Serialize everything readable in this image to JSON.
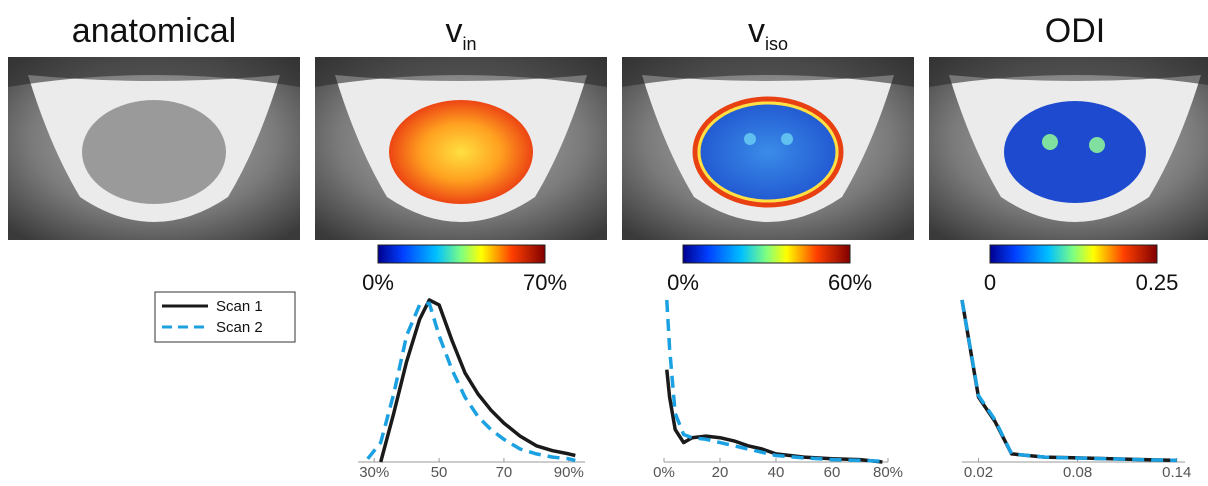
{
  "panels": [
    {
      "title": "anatomical"
    },
    {
      "title": "v",
      "subscript": "in"
    },
    {
      "title": "v",
      "subscript": "iso"
    },
    {
      "title": "ODI"
    }
  ],
  "colorbars": [
    {
      "min_label": "0%",
      "max_label": "70%"
    },
    {
      "min_label": "0%",
      "max_label": "60%"
    },
    {
      "min_label": "0",
      "max_label": "0.25"
    }
  ],
  "chart_data": [
    {
      "type": "line",
      "x": [
        28,
        32,
        36,
        40,
        44,
        47,
        50,
        54,
        58,
        62,
        66,
        70,
        75,
        80,
        85,
        90,
        92
      ],
      "series": [
        {
          "name": "Scan 1",
          "color": "#1a1a1a",
          "dashed": false,
          "values": [
            null,
            0,
            0.3,
            0.62,
            0.88,
            1.0,
            0.97,
            0.75,
            0.55,
            0.42,
            0.32,
            0.24,
            0.16,
            0.1,
            0.07,
            0.05,
            0.04
          ]
        },
        {
          "name": "Scan 2",
          "color": "#1ba1e2",
          "dashed": true,
          "values": [
            0.02,
            0.12,
            0.42,
            0.78,
            0.97,
            0.98,
            0.78,
            0.57,
            0.4,
            0.28,
            0.2,
            0.14,
            0.08,
            0.05,
            0.03,
            0.02,
            0.01
          ]
        }
      ],
      "xlim": [
        25,
        95
      ],
      "ylim": [
        0,
        1
      ],
      "xticks": [
        {
          "value": 30,
          "label": "30%"
        },
        50,
        70,
        {
          "value": 90,
          "label": "90%"
        }
      ]
    },
    {
      "type": "line",
      "x": [
        1,
        2,
        4,
        7,
        10,
        15,
        20,
        25,
        30,
        35,
        40,
        50,
        60,
        70,
        78
      ],
      "series": [
        {
          "color": "#1a1a1a",
          "dashed": false,
          "values": [
            0.57,
            0.4,
            0.2,
            0.12,
            0.15,
            0.16,
            0.15,
            0.13,
            0.1,
            0.08,
            0.05,
            0.03,
            0.02,
            0.015,
            0
          ]
        },
        {
          "color": "#1ba1e2",
          "dashed": true,
          "values": [
            1.0,
            0.7,
            0.3,
            0.17,
            0.15,
            0.14,
            0.12,
            0.1,
            0.08,
            0.06,
            0.04,
            0.025,
            0.015,
            0.01,
            0.005
          ]
        }
      ],
      "xlim": [
        0,
        80
      ],
      "ylim": [
        0,
        1
      ],
      "xticks": [
        {
          "value": 0,
          "label": "0%"
        },
        20,
        40,
        60,
        {
          "value": 80,
          "label": "80%"
        }
      ]
    },
    {
      "type": "line",
      "x": [
        0.01,
        0.02,
        0.03,
        0.04,
        0.06,
        0.08,
        0.1,
        0.12,
        0.14
      ],
      "series": [
        {
          "color": "#1a1a1a",
          "dashed": false,
          "values": [
            1.0,
            0.4,
            0.25,
            0.05,
            0.03,
            0.025,
            0.02,
            0.015,
            0.01
          ]
        },
        {
          "color": "#1ba1e2",
          "dashed": true,
          "values": [
            1.0,
            0.41,
            0.26,
            0.05,
            0.03,
            0.024,
            0.02,
            0.014,
            0.01
          ]
        }
      ],
      "xlim": [
        0.01,
        0.145
      ],
      "ylim": [
        0,
        1
      ],
      "xticks": [
        0.02,
        0.08,
        0.14
      ]
    }
  ]
}
